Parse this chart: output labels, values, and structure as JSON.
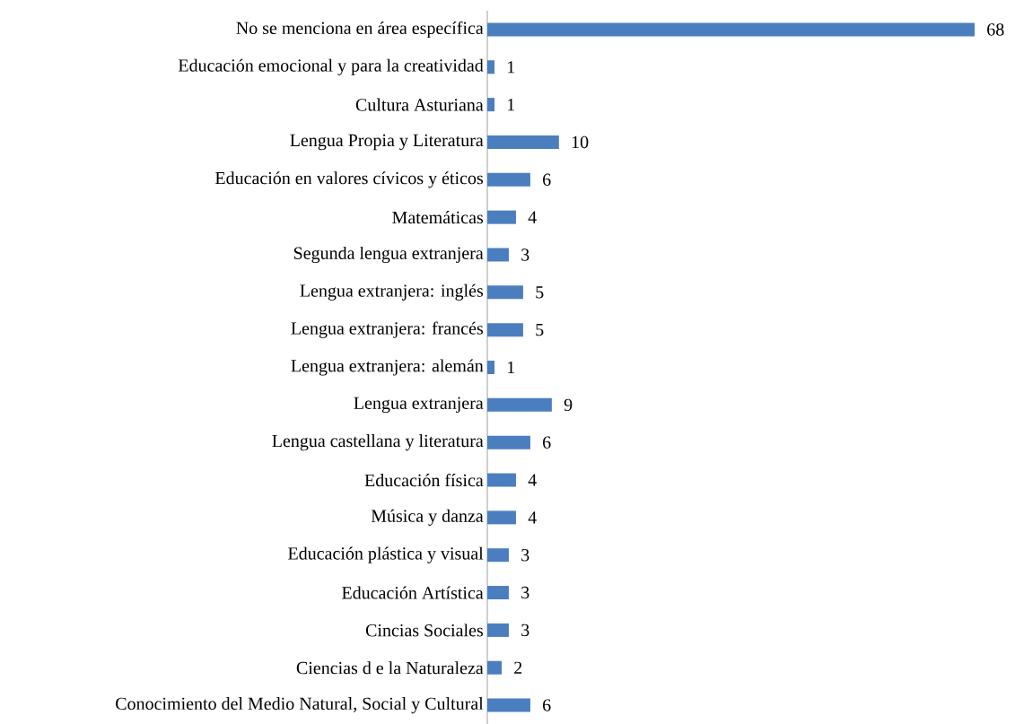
{
  "chart_data": {
    "type": "bar",
    "orientation": "horizontal",
    "data_labels": true,
    "color": "#4a7ebf",
    "categories": [
      "No se menciona en área específica",
      "Educación emocional y para la creatividad",
      "Cultura Asturiana",
      "Lengua Propia y Literatura",
      "Educación en valores cívicos y éticos",
      "Matemáticas",
      "Segunda lengua extranjera",
      "Lengua extranjera: inglés",
      "Lengua extranjera: francés",
      "Lengua extranjera: alemán",
      "Lengua extranjera",
      "Lengua castellana y literatura",
      "Educación física",
      "Música y danza",
      "Educación plástica y visual",
      "Educación Artística",
      "Cincias Sociales",
      "Ciencias d e la Naturaleza",
      "Conocimiento del Medio Natural, Social y Cultural"
    ],
    "values": [
      68,
      1,
      1,
      10,
      6,
      4,
      3,
      5,
      5,
      1,
      9,
      6,
      4,
      4,
      3,
      3,
      3,
      2,
      6
    ]
  }
}
